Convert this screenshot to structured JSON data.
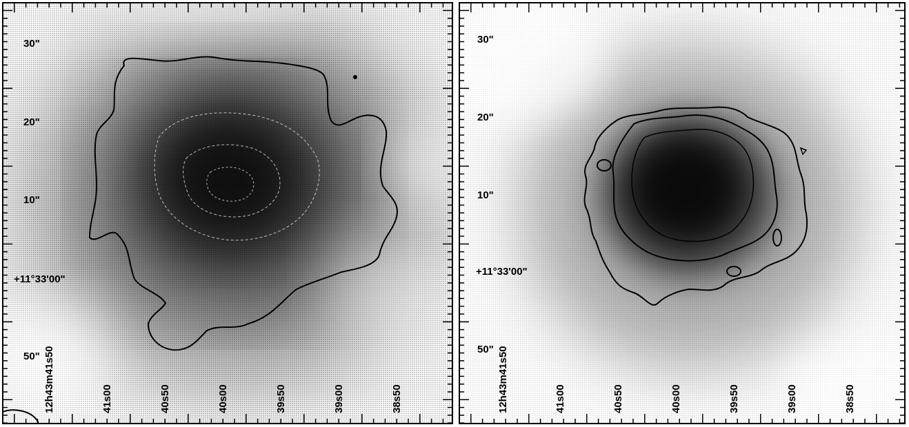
{
  "panels": [
    {
      "y_ticks": [
        "30\"",
        "20\"",
        "10\"",
        "+11°33'00\"",
        "50\""
      ],
      "x_ticks": [
        "12h43m41s50",
        "41s00",
        "40s50",
        "40s00",
        "39s50",
        "39s00",
        "38s50"
      ],
      "beam_shown": true
    },
    {
      "y_ticks": [
        "30\"",
        "20\"",
        "10\"",
        "+11°33'00\"",
        "50\""
      ],
      "x_ticks": [
        "12h43m41s50",
        "41s00",
        "40s50",
        "40s00",
        "39s50",
        "39s00",
        "38s50"
      ],
      "beam_shown": false
    }
  ],
  "colors": {
    "ink": "#000000",
    "paper": "#ffffff",
    "halftone": "#000000"
  }
}
